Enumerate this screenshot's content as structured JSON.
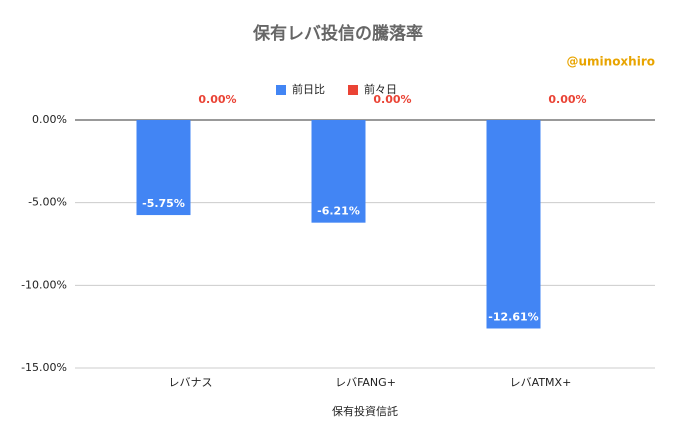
{
  "chart_data": {
    "type": "bar",
    "title": "保有レバ投信の騰落率",
    "annotation": "@uminoxhiro",
    "x_label": "保有投資信託",
    "categories": [
      "レバナス",
      "レバFANG+",
      "レバATMX+"
    ],
    "series": [
      {
        "name": "前日比",
        "color": "#4285f4",
        "values": [
          -5.75,
          -6.21,
          -12.61
        ],
        "value_labels": [
          "-5.75%",
          "-6.21%",
          "-12.61%"
        ]
      },
      {
        "name": "前々日",
        "color": "#ea4335",
        "values": [
          0,
          0,
          0
        ],
        "value_labels": [
          "0.00%",
          "0.00%",
          "0.00%"
        ]
      }
    ],
    "ylim": [
      -15,
      0
    ],
    "yticks": [
      {
        "value": 0,
        "label": "0.00%"
      },
      {
        "value": -5,
        "label": "-5.00%"
      },
      {
        "value": -10,
        "label": "-10.00%"
      },
      {
        "value": -15,
        "label": "-15.00%"
      }
    ],
    "grid": true,
    "legend": "top"
  }
}
